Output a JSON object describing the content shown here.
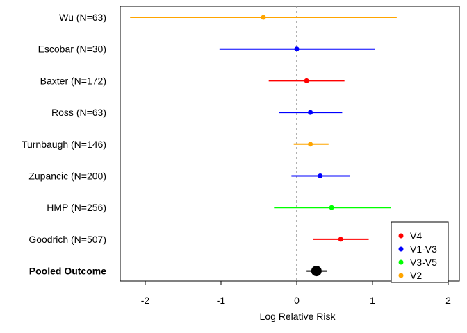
{
  "chart_data": {
    "type": "forest",
    "xlabel": "Log Relative Risk",
    "xlim": [
      -2.35,
      2.0
    ],
    "x_ticks": [
      -2,
      -1,
      0,
      1,
      2
    ],
    "x_tick_labels": [
      "-2",
      "-1",
      "0",
      "1",
      "2"
    ],
    "reference_line": 0,
    "reference_line_style": "dotted",
    "grid": false,
    "legend_position": "bottom-right",
    "legend": [
      {
        "label": "V4",
        "color": "#ff0000"
      },
      {
        "label": "V1-V3",
        "color": "#0000ff"
      },
      {
        "label": "V3-V5",
        "color": "#00ff00"
      },
      {
        "label": "V2",
        "color": "#ffa500"
      }
    ],
    "studies": [
      {
        "label": "Wu (N=63)",
        "estimate": -0.44,
        "lower": -2.2,
        "upper": 1.32,
        "region": "V2",
        "color": "#ffa500"
      },
      {
        "label": "Escobar (N=30)",
        "estimate": 0.0,
        "lower": -1.02,
        "upper": 1.03,
        "region": "V1-V3",
        "color": "#0000ff"
      },
      {
        "label": "Baxter (N=172)",
        "estimate": 0.13,
        "lower": -0.37,
        "upper": 0.63,
        "region": "V4",
        "color": "#ff0000"
      },
      {
        "label": "Ross (N=63)",
        "estimate": 0.18,
        "lower": -0.23,
        "upper": 0.6,
        "region": "V1-V3",
        "color": "#0000ff"
      },
      {
        "label": "Turnbaugh (N=146)",
        "estimate": 0.18,
        "lower": -0.04,
        "upper": 0.42,
        "region": "V2",
        "color": "#ffa500"
      },
      {
        "label": "Zupancic (N=200)",
        "estimate": 0.31,
        "lower": -0.07,
        "upper": 0.7,
        "region": "V1-V3",
        "color": "#0000ff"
      },
      {
        "label": "HMP (N=256)",
        "estimate": 0.46,
        "lower": -0.3,
        "upper": 1.24,
        "region": "V3-V5",
        "color": "#00ff00"
      },
      {
        "label": "Goodrich (N=507)",
        "estimate": 0.58,
        "lower": 0.22,
        "upper": 0.95,
        "region": "V4",
        "color": "#ff0000"
      }
    ],
    "pooled": {
      "label": "Pooled Outcome",
      "estimate": 0.26,
      "lower": 0.13,
      "upper": 0.4,
      "color": "#000000"
    }
  }
}
